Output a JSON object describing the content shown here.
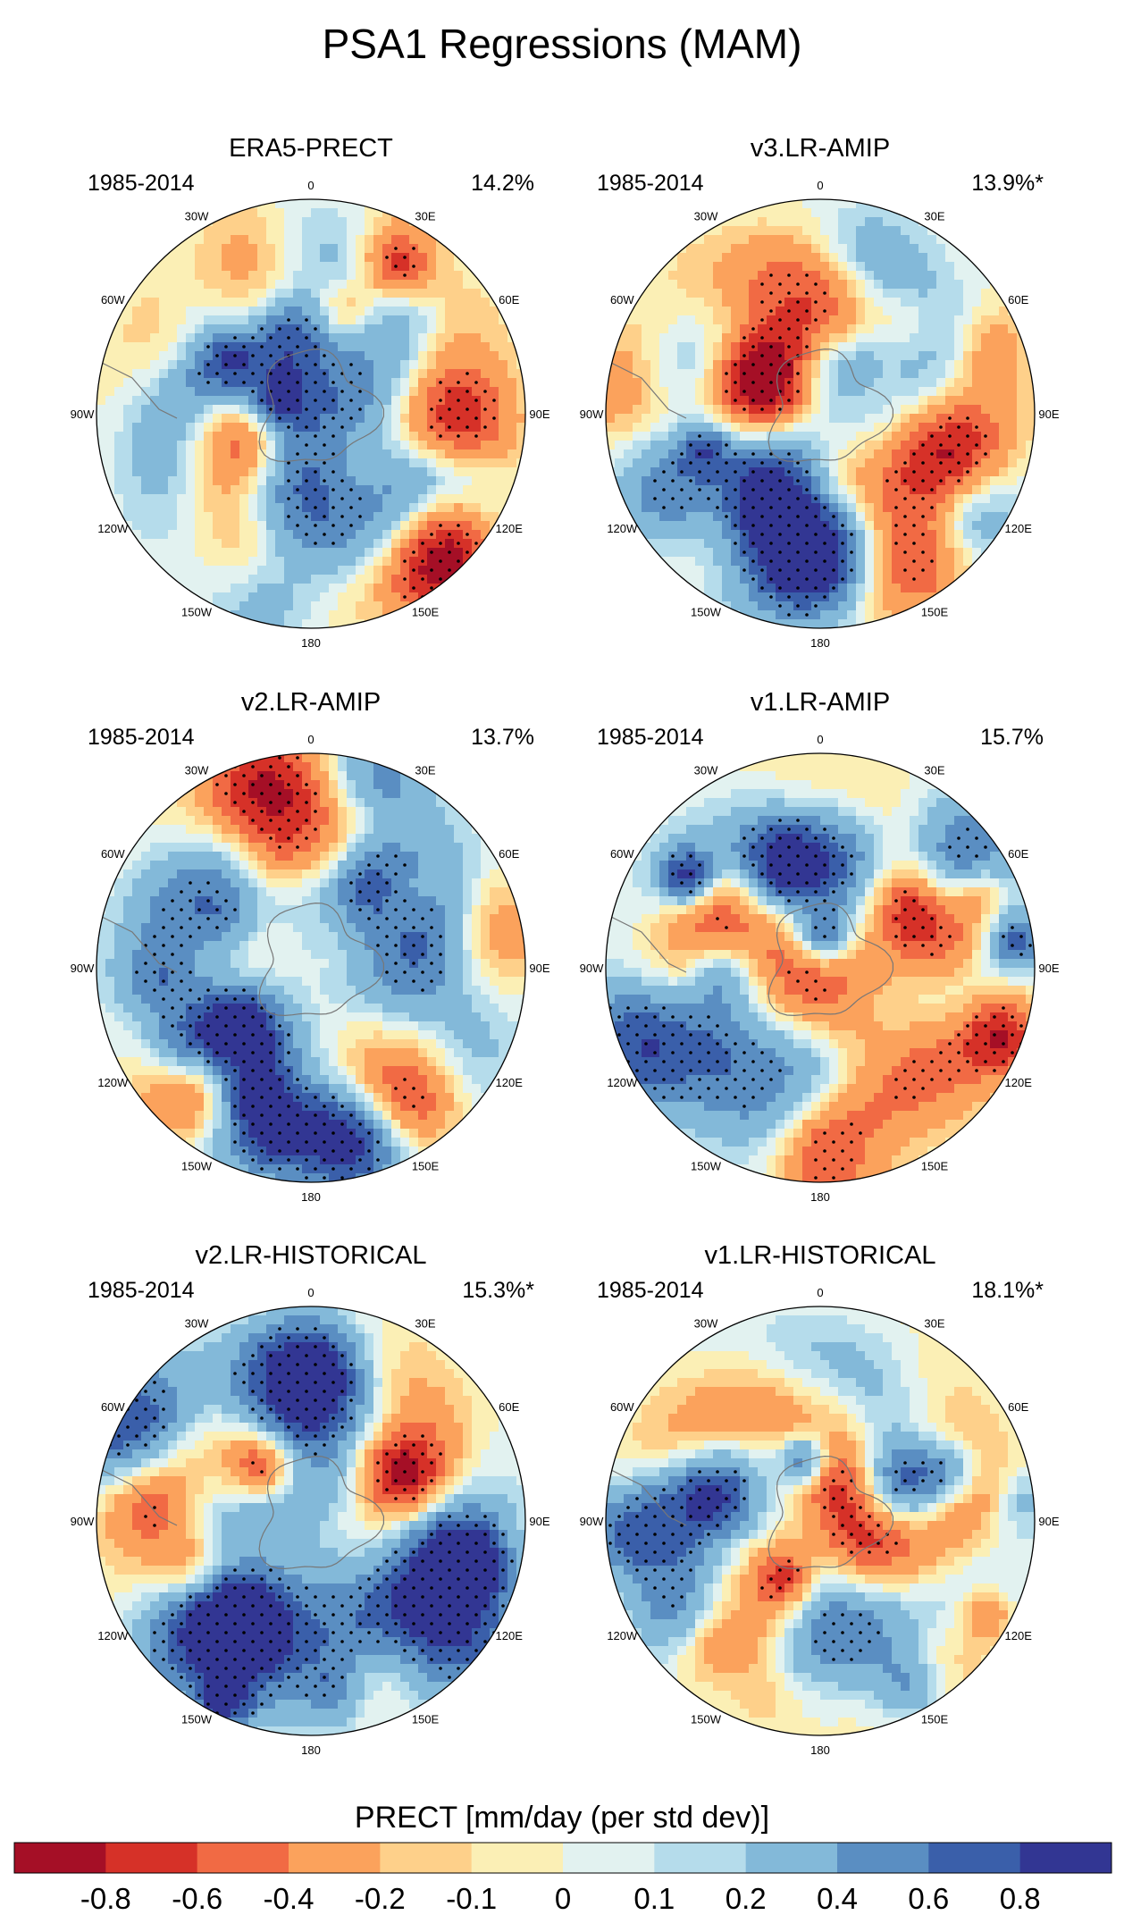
{
  "title": "PSA1 Regressions (MAM)",
  "panels": [
    {
      "name": "ERA5-PRECT",
      "years": "1985-2014",
      "variance": "14.2%"
    },
    {
      "name": "v3.LR-AMIP",
      "years": "1985-2014",
      "variance": "13.9%*"
    },
    {
      "name": "v2.LR-AMIP",
      "years": "1985-2014",
      "variance": "13.7%"
    },
    {
      "name": "v1.LR-AMIP",
      "years": "1985-2014",
      "variance": "15.7%"
    },
    {
      "name": "v2.LR-HISTORICAL",
      "years": "1985-2014",
      "variance": "15.3%*"
    },
    {
      "name": "v1.LR-HISTORICAL",
      "years": "1985-2014",
      "variance": "18.1%*"
    }
  ],
  "longitude_labels": [
    "0",
    "30E",
    "60E",
    "90E",
    "120E",
    "150E",
    "180",
    "150W",
    "120W",
    "90W",
    "60W",
    "30W"
  ],
  "colorbar": {
    "title": "PRECT [mm/day (per std dev)]",
    "levels": [
      "-0.8",
      "-0.6",
      "-0.4",
      "-0.2",
      "-0.1",
      "0",
      "0.1",
      "0.2",
      "0.4",
      "0.6",
      "0.8"
    ],
    "colors": [
      "#a50f26",
      "#d63128",
      "#f16a44",
      "#fba25c",
      "#fed08a",
      "#fbefb5",
      "#e2f2f0",
      "#b5dceb",
      "#83b9d9",
      "#5a8ec2",
      "#3a5faa",
      "#323693"
    ]
  },
  "chart_data": {
    "type": "heatmap",
    "projection": "south polar stereographic",
    "variable": "PRECT regression on PSA1 index",
    "units": "mm/day (per std dev)",
    "season": "MAM",
    "period": "1985-2014",
    "contour_levels": [
      -0.8,
      -0.6,
      -0.4,
      -0.2,
      -0.1,
      0,
      0.1,
      0.2,
      0.4,
      0.6,
      0.8
    ],
    "stippling": "statistically significant regions",
    "panels": [
      {
        "dataset": "ERA5-PRECT",
        "explained_variance_pct": 14.2
      },
      {
        "dataset": "v3.LR-AMIP",
        "explained_variance_pct": 13.9
      },
      {
        "dataset": "v2.LR-AMIP",
        "explained_variance_pct": 13.7
      },
      {
        "dataset": "v1.LR-AMIP",
        "explained_variance_pct": 15.7
      },
      {
        "dataset": "v2.LR-HISTORICAL",
        "explained_variance_pct": 15.3
      },
      {
        "dataset": "v1.LR-HISTORICAL",
        "explained_variance_pct": 18.1
      }
    ]
  }
}
